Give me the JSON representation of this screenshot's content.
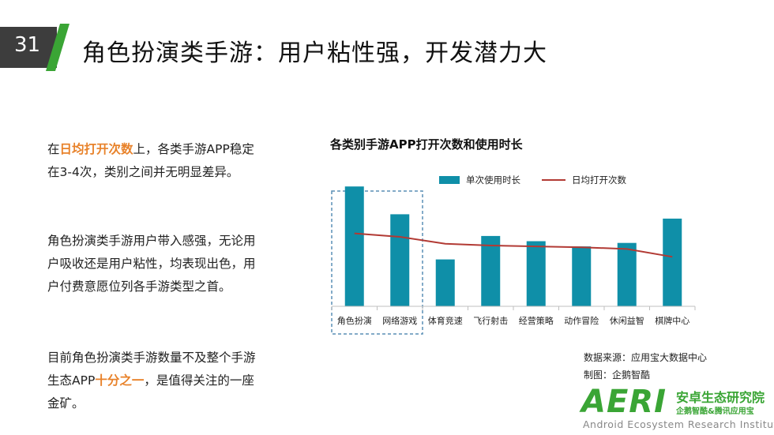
{
  "slide": {
    "number": "31",
    "title": "角色扮演类手游：用户粘性强，开发潜力大"
  },
  "paragraphs": [
    {
      "pre": "在",
      "hl": "日均打开次数",
      "post": "上，各类手游APP稳定在3-4次，类别之间并无明显差异。"
    },
    {
      "text": "角色扮演类手游用户带入感强，无论用户吸收还是用户粘性，均表现出色，用户付费意愿位列各手游类型之首。"
    },
    {
      "pre": "目前角色扮演类手游数量不及整个手游生态APP",
      "hl": "十分之一",
      "post": "，是值得关注的一座金矿。"
    }
  ],
  "chart_data": {
    "type": "bar",
    "title": "各类别手游APP打开次数和使用时长",
    "categories": [
      "角色扮演",
      "网络游戏",
      "体育竞速",
      "飞行射击",
      "经营策略",
      "动作冒险",
      "休闲益智",
      "棋牌中心"
    ],
    "series": [
      {
        "name": "单次使用时长",
        "type": "bar",
        "color": "#0f8fa8",
        "values": [
          138,
          106,
          54,
          81,
          75,
          69,
          73,
          101
        ]
      },
      {
        "name": "日均打开次数",
        "type": "line",
        "color": "#b23a34",
        "values": [
          84,
          80,
          72,
          70,
          69,
          68,
          66,
          57
        ]
      }
    ],
    "ylim": [
      0,
      150
    ],
    "legend": "top-center",
    "grid": false,
    "highlight": [
      "角色扮演",
      "网络游戏"
    ]
  },
  "footer": {
    "source": "数据来源：应用宝大数据中心",
    "credit": "制图：企鹅智酷"
  },
  "logo": {
    "mark": "AERI",
    "cn": "安卓生态研究院",
    "cn_sub": "企鹅智酷&腾讯应用宝",
    "en": "Android Ecosystem Research Institute"
  }
}
